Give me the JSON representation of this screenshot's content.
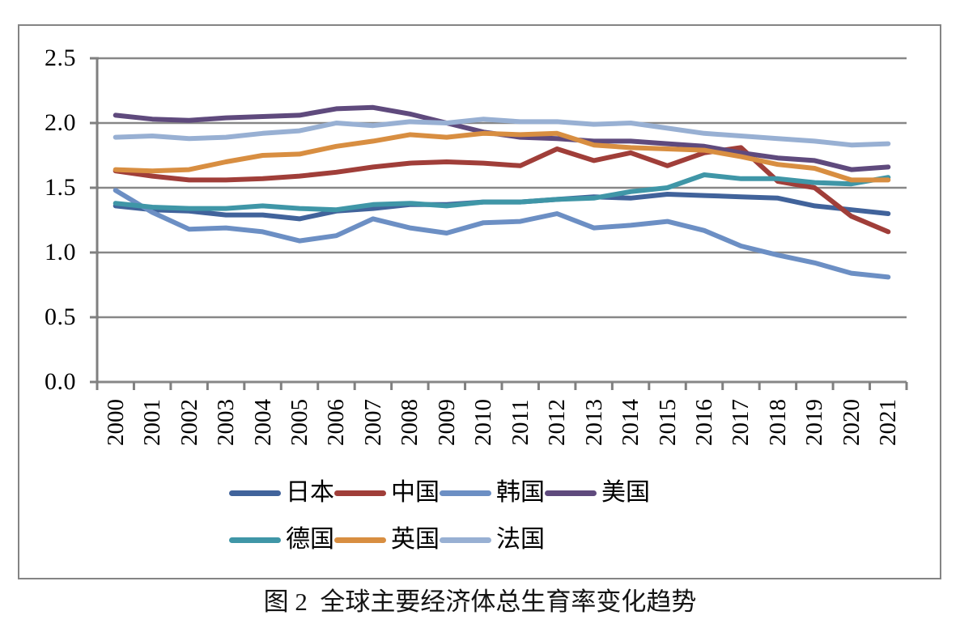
{
  "chart_data": {
    "type": "line",
    "title": "",
    "caption": "图 2  全球主要经济体总生育率变化趋势",
    "xlabel": "",
    "ylabel": "",
    "x": [
      "2000",
      "2001",
      "2002",
      "2003",
      "2004",
      "2005",
      "2006",
      "2007",
      "2008",
      "2009",
      "2010",
      "2011",
      "2012",
      "2013",
      "2014",
      "2015",
      "2016",
      "2017",
      "2018",
      "2019",
      "2020",
      "2021"
    ],
    "y_ticks": [
      "0.0",
      "0.5",
      "1.0",
      "1.5",
      "2.0",
      "2.5"
    ],
    "ylim": [
      0.0,
      2.5
    ],
    "grid": "horizontal",
    "legend_position": "bottom",
    "legend_row_counts": [
      4,
      3
    ],
    "colors": {
      "frame_border": "#848484",
      "gridline": "#878787",
      "axis": "#808080"
    },
    "series": [
      {
        "name": "日本",
        "key": "japan",
        "color": "#41639B",
        "values": [
          1.36,
          1.33,
          1.32,
          1.29,
          1.29,
          1.26,
          1.32,
          1.34,
          1.37,
          1.37,
          1.39,
          1.39,
          1.41,
          1.43,
          1.42,
          1.45,
          1.44,
          1.43,
          1.42,
          1.36,
          1.33,
          1.3
        ]
      },
      {
        "name": "中国",
        "key": "china",
        "color": "#A03E39",
        "values": [
          1.63,
          1.59,
          1.56,
          1.56,
          1.57,
          1.59,
          1.62,
          1.66,
          1.69,
          1.7,
          1.69,
          1.67,
          1.8,
          1.71,
          1.77,
          1.67,
          1.77,
          1.81,
          1.55,
          1.5,
          1.28,
          1.16
        ]
      },
      {
        "name": "韩国",
        "key": "south-korea",
        "color": "#6C8FC4",
        "values": [
          1.48,
          1.31,
          1.18,
          1.19,
          1.16,
          1.09,
          1.13,
          1.26,
          1.19,
          1.15,
          1.23,
          1.24,
          1.3,
          1.19,
          1.21,
          1.24,
          1.17,
          1.05,
          0.98,
          0.92,
          0.84,
          0.81
        ]
      },
      {
        "name": "美国",
        "key": "usa",
        "color": "#5F4A7D",
        "values": [
          2.06,
          2.03,
          2.02,
          2.04,
          2.05,
          2.06,
          2.11,
          2.12,
          2.07,
          2.0,
          1.93,
          1.89,
          1.88,
          1.86,
          1.86,
          1.84,
          1.82,
          1.77,
          1.73,
          1.71,
          1.64,
          1.66
        ]
      },
      {
        "name": "德国",
        "key": "germany",
        "color": "#3F96A7",
        "values": [
          1.38,
          1.35,
          1.34,
          1.34,
          1.36,
          1.34,
          1.33,
          1.37,
          1.38,
          1.36,
          1.39,
          1.39,
          1.41,
          1.42,
          1.47,
          1.5,
          1.6,
          1.57,
          1.57,
          1.54,
          1.53,
          1.58
        ]
      },
      {
        "name": "英国",
        "key": "uk",
        "color": "#D88E41",
        "values": [
          1.64,
          1.63,
          1.64,
          1.7,
          1.75,
          1.76,
          1.82,
          1.86,
          1.91,
          1.89,
          1.92,
          1.91,
          1.92,
          1.83,
          1.81,
          1.8,
          1.79,
          1.74,
          1.68,
          1.65,
          1.56,
          1.56
        ]
      },
      {
        "name": "法国",
        "key": "france",
        "color": "#98B0D3",
        "values": [
          1.89,
          1.9,
          1.88,
          1.89,
          1.92,
          1.94,
          2.0,
          1.98,
          2.01,
          2.0,
          2.03,
          2.01,
          2.01,
          1.99,
          2.0,
          1.96,
          1.92,
          1.9,
          1.88,
          1.86,
          1.83,
          1.84
        ]
      }
    ]
  }
}
